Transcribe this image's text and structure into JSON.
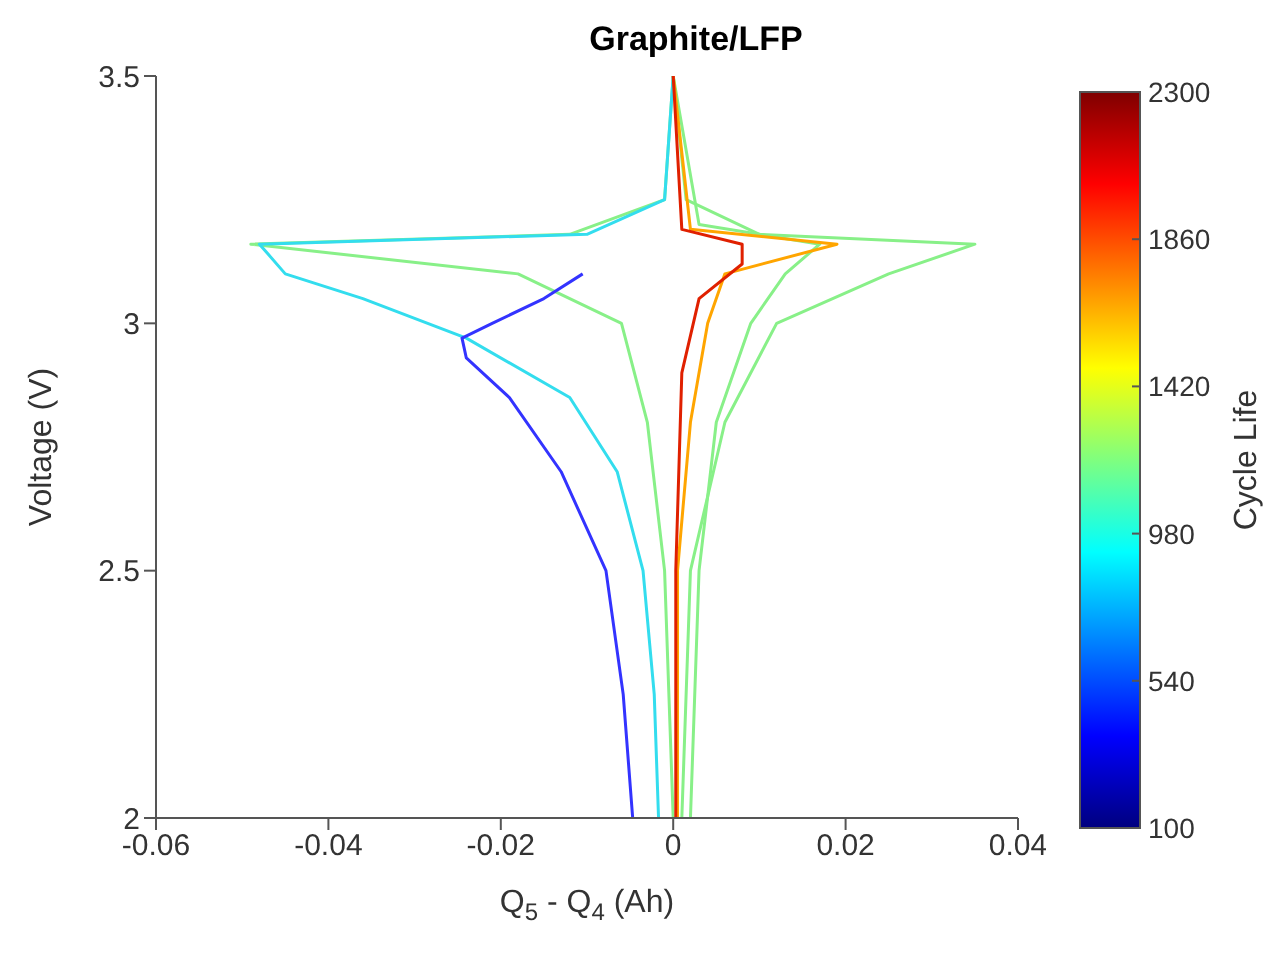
{
  "chart_data": {
    "type": "line",
    "title": "Graphite/LFP",
    "xlabel": "Q$_{5}$ - Q$_{4}$ (Ah)",
    "ylabel": "Voltage (V)",
    "clabel": "Cycle Life",
    "xlim": [
      -0.06,
      0.04
    ],
    "xticks": [
      -0.06,
      -0.04,
      -0.02,
      0,
      0.02,
      0.04
    ],
    "ylim": [
      2,
      3.5
    ],
    "yticks": [
      2,
      2.5,
      3,
      3.5
    ],
    "clim": [
      100,
      2300
    ],
    "cticks": [
      100,
      540,
      980,
      1420,
      1860,
      2300
    ],
    "marker": "none",
    "line_style": "solid",
    "series": [
      {
        "color": "#88f088",
        "x": [
          0,
          -0.001,
          -0.003,
          -0.006,
          -0.018,
          -0.049,
          -0.012,
          -0.001,
          0
        ],
        "values": [
          2,
          2.5,
          2.8,
          3.0,
          3.1,
          3.16,
          3.18,
          3.25,
          3.5
        ]
      },
      {
        "color": "#88f088",
        "x": [
          0.001,
          0.002,
          0.006,
          0.012,
          0.025,
          0.035,
          0.01,
          0.0015,
          0
        ],
        "values": [
          2,
          2.5,
          2.8,
          3.0,
          3.1,
          3.16,
          3.18,
          3.25,
          3.5
        ]
      },
      {
        "color": "#88f088",
        "x": [
          0.002,
          0.003,
          0.005,
          0.009,
          0.013,
          0.017,
          0.003,
          0
        ],
        "values": [
          2,
          2.5,
          2.8,
          3.0,
          3.1,
          3.16,
          3.2,
          3.5
        ]
      },
      {
        "color": "#33ddee",
        "x": [
          -0.0017,
          -0.0022,
          -0.0035,
          -0.0065,
          -0.012,
          -0.024,
          -0.036,
          -0.045,
          -0.047,
          -0.048,
          -0.01,
          -0.001,
          0
        ],
        "values": [
          2,
          2.25,
          2.5,
          2.7,
          2.85,
          2.97,
          3.05,
          3.1,
          3.14,
          3.16,
          3.18,
          3.25,
          3.5
        ]
      },
      {
        "color": "#3333ff",
        "x": [
          -0.0047,
          -0.0058,
          -0.0078,
          -0.013,
          -0.019,
          -0.024,
          -0.0245,
          -0.021,
          -0.015,
          -0.0105
        ],
        "values": [
          2,
          2.25,
          2.5,
          2.7,
          2.85,
          2.93,
          2.97,
          3.0,
          3.05,
          3.1
        ]
      },
      {
        "color": "#ffa500",
        "x": [
          0.0005,
          0.0005,
          0.002,
          0.004,
          0.006,
          0.019,
          0.002,
          0
        ],
        "values": [
          2,
          2.5,
          2.8,
          3.0,
          3.1,
          3.16,
          3.19,
          3.5
        ]
      },
      {
        "color": "#e02000",
        "x": [
          0.0003,
          0.0003,
          0.001,
          0.003,
          0.008,
          0.008,
          0.001,
          0
        ],
        "values": [
          2,
          2.5,
          2.9,
          3.05,
          3.12,
          3.16,
          3.19,
          3.5
        ]
      }
    ]
  }
}
